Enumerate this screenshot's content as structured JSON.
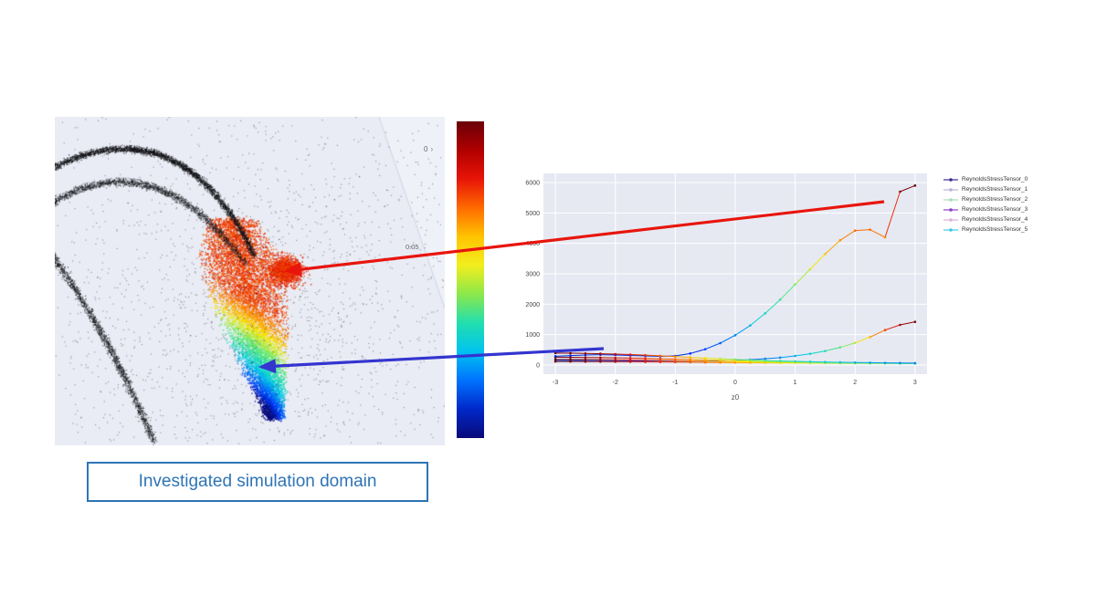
{
  "caption": {
    "label": "Investigated simulation domain",
    "accent_color": "#2e74b5"
  },
  "domain_view": {
    "description": "3D particle scatter of simulation domain",
    "tick_labels": {
      "z_top": "0",
      "z_mid": "0.05"
    },
    "background": "#e9ecf5"
  },
  "colorbar": {
    "orientation": "vertical",
    "colors_top_to_bottom": [
      "#690008",
      "#b00000",
      "#e81408",
      "#ff6a00",
      "#ffc400",
      "#f2ee1e",
      "#8ce84a",
      "#22dfae",
      "#00c3f0",
      "#0072ff",
      "#0028c8",
      "#0a0a78"
    ]
  },
  "annotations": {
    "red_arrow": "links high Reynolds stress values to red region of domain",
    "blue_arrow": "links low Reynolds stress values to blue region of domain",
    "red_color": "#e8150d",
    "blue_color": "#3434cf"
  },
  "chart_data": {
    "type": "line",
    "title": "",
    "xlabel": "z0",
    "ylabel": "",
    "xlim": [
      -3.2,
      3.2
    ],
    "ylim": [
      -300,
      6300
    ],
    "xticks": [
      -3,
      -2,
      -1,
      0,
      1,
      2,
      3
    ],
    "yticks": [
      0,
      1000,
      2000,
      3000,
      4000,
      5000,
      6000
    ],
    "grid": true,
    "legend_position": "right",
    "plot_background": "#e6e9f2",
    "marker_colormap": "jet_by_value_per_series",
    "x": [
      -3,
      -2.75,
      -2.5,
      -2.25,
      -2,
      -1.75,
      -1.5,
      -1.25,
      -1,
      -0.75,
      -0.5,
      -0.25,
      0,
      0.25,
      0.5,
      0.75,
      1,
      1.25,
      1.5,
      1.75,
      2,
      2.25,
      2.5,
      2.75,
      3
    ],
    "series": [
      {
        "name": "ReynoldsStressTensor_0",
        "legend_color": "#3f2d91",
        "values": [
          155,
          150,
          148,
          145,
          142,
          138,
          135,
          132,
          128,
          128,
          132,
          140,
          155,
          175,
          205,
          245,
          300,
          370,
          460,
          580,
          730,
          920,
          1150,
          1320,
          1420
        ]
      },
      {
        "name": "ReynoldsStressTensor_1",
        "legend_color": "#b7b3d6",
        "values": [
          258,
          254,
          249,
          243,
          236,
          228,
          218,
          207,
          195,
          182,
          169,
          156,
          144,
          132,
          121,
          111,
          102,
          94,
          87,
          80,
          75,
          70,
          65,
          61,
          58
        ]
      },
      {
        "name": "ReynoldsStressTensor_2",
        "legend_color": "#a9ddb5",
        "values": [
          185,
          182,
          179,
          175,
          170,
          164,
          157,
          150,
          142,
          134,
          126,
          118,
          110,
          103,
          96,
          90,
          84,
          79,
          74,
          70,
          66,
          62,
          59,
          56,
          53
        ]
      },
      {
        "name": "ReynoldsStressTensor_3",
        "legend_color": "#8c3ec9",
        "values": [
          290,
          310,
          330,
          340,
          330,
          315,
          300,
          285,
          300,
          380,
          520,
          720,
          980,
          1300,
          1700,
          2150,
          2650,
          3150,
          3650,
          4100,
          4420,
          4450,
          4200,
          5700,
          5900
        ]
      },
      {
        "name": "ReynoldsStressTensor_4",
        "legend_color": "#ddb1d8",
        "values": [
          118,
          116,
          114,
          112,
          110,
          107,
          104,
          100,
          96,
          92,
          88,
          84,
          80,
          76,
          72,
          69,
          66,
          63,
          60,
          58,
          56,
          54,
          52,
          50,
          49
        ]
      },
      {
        "name": "ReynoldsStressTensor_5",
        "legend_color": "#3ec9e6",
        "values": [
          395,
          390,
          382,
          372,
          360,
          345,
          325,
          302,
          278,
          252,
          228,
          205,
          184,
          165,
          148,
          133,
          120,
          109,
          99,
          90,
          83,
          77,
          71,
          66,
          62
        ]
      }
    ]
  }
}
